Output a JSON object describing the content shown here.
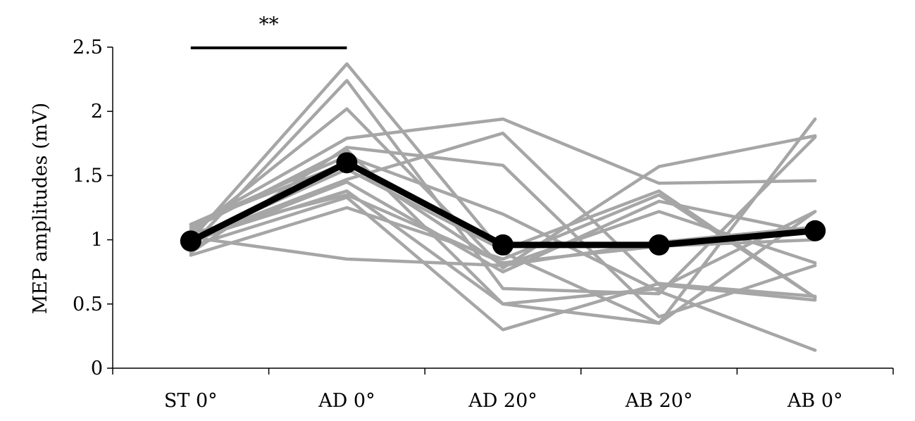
{
  "chart_data": {
    "type": "line",
    "categories": [
      "ST 0°",
      "AD 0°",
      "AD 20°",
      "AB 20°",
      "AB 0°"
    ],
    "ylabel": "MEP amplitudes (mV)",
    "xlabel": "",
    "ylim": [
      0,
      2.5
    ],
    "yticks": [
      0,
      0.5,
      1,
      1.5,
      2,
      2.5
    ],
    "ytick_labels": [
      "0",
      "0.5",
      "1",
      "1.5",
      "2",
      "2.5"
    ],
    "grid": false,
    "legend": "none",
    "colors": {
      "individual": "#a6a6a6",
      "mean": "#000000"
    },
    "individual_series": [
      [
        1.0,
        2.37,
        0.9,
        0.35,
        1.94
      ],
      [
        0.95,
        2.24,
        0.62,
        0.58,
        1.8
      ],
      [
        1.05,
        2.02,
        0.78,
        1.57,
        1.81
      ],
      [
        1.1,
        1.79,
        1.94,
        1.44,
        1.46
      ],
      [
        1.0,
        1.47,
        1.83,
        0.65,
        0.53
      ],
      [
        0.9,
        1.72,
        1.58,
        0.4,
        0.8
      ],
      [
        1.12,
        1.65,
        1.2,
        0.6,
        0.14
      ],
      [
        1.0,
        1.38,
        0.5,
        0.62,
        1.22
      ],
      [
        0.95,
        1.33,
        0.3,
        0.66,
        0.56
      ],
      [
        1.02,
        0.85,
        0.8,
        1.22,
        0.82
      ],
      [
        0.88,
        1.25,
        0.85,
        1.35,
        0.55
      ],
      [
        1.08,
        1.7,
        0.5,
        0.35,
        1.22
      ],
      [
        0.98,
        1.45,
        0.75,
        1.3,
        1.05
      ],
      [
        1.05,
        1.35,
        0.82,
        0.95,
        1.0
      ],
      [
        1.0,
        1.55,
        0.92,
        1.38,
        0.55
      ],
      [
        1.12,
        1.6,
        0.8,
        0.98,
        1.1
      ]
    ],
    "mean_series": {
      "values": [
        0.99,
        1.6,
        0.96,
        0.96,
        1.07
      ]
    },
    "significance": {
      "label": "**",
      "from_category": "ST 0°",
      "to_category": "AD 0°"
    }
  }
}
